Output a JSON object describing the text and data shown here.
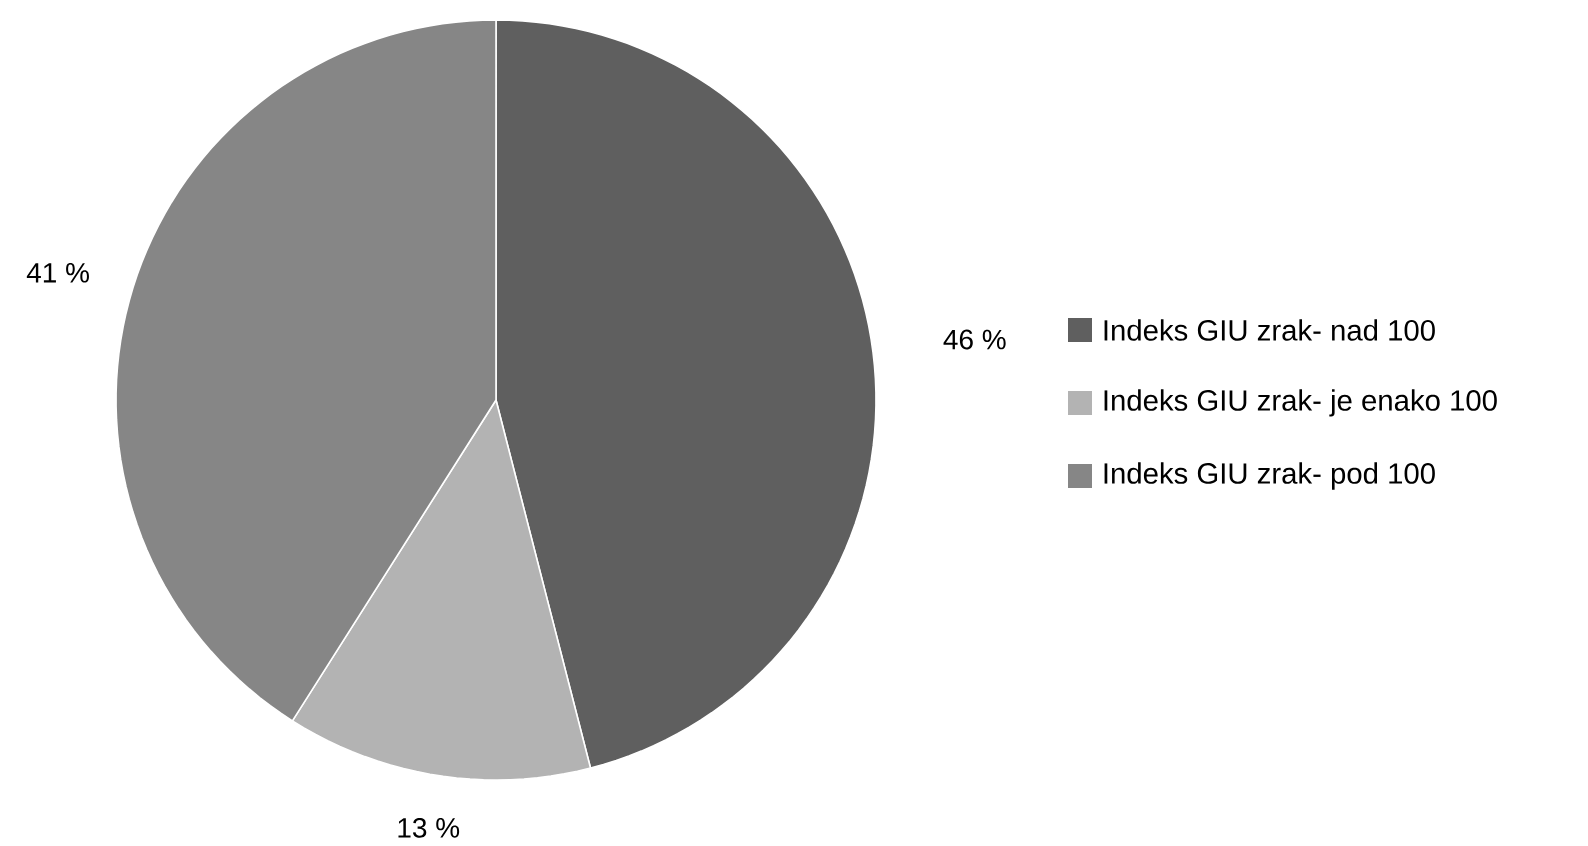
{
  "chart_data": {
    "type": "pie",
    "categories": [
      "Indeks GIU zrak- nad 100",
      "Indeks GIU zrak- je enako 100",
      "Indeks GIU zrak- pod 100"
    ],
    "values": [
      46,
      13,
      41
    ],
    "colors": [
      "#5f5f5f",
      "#b3b3b3",
      "#868686"
    ],
    "value_labels": [
      "46 %",
      "13 %",
      "41 %"
    ],
    "legend": "right"
  }
}
